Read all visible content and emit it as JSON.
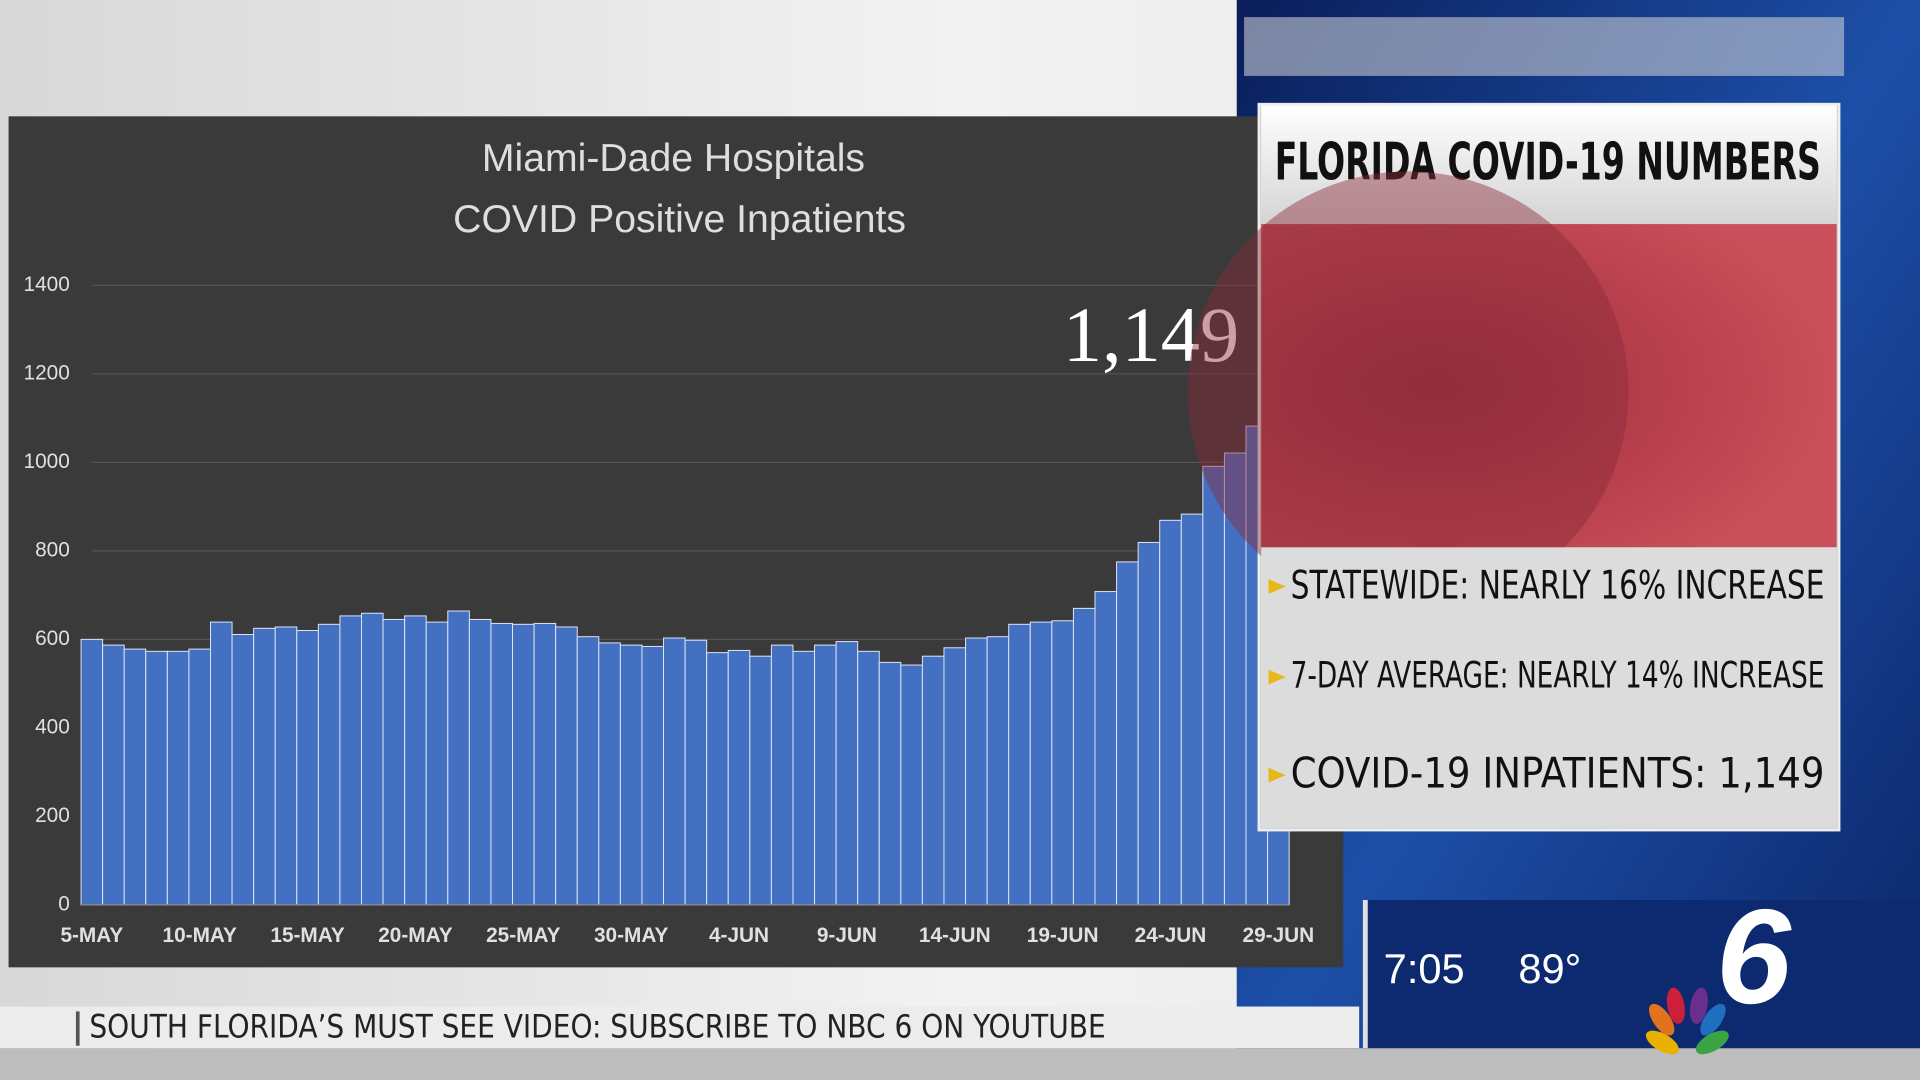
{
  "chart_data": {
    "type": "bar",
    "title": "Miami-Dade Hospitals",
    "subtitle": "COVID Positive Inpatients",
    "annotation": "1,149",
    "categories": [
      "5-MAY",
      null,
      null,
      null,
      null,
      "10-MAY",
      null,
      null,
      null,
      null,
      "15-MAY",
      null,
      null,
      null,
      null,
      "20-MAY",
      null,
      null,
      null,
      null,
      "25-MAY",
      null,
      null,
      null,
      null,
      "30-MAY",
      null,
      null,
      null,
      null,
      "4-JUN",
      null,
      null,
      null,
      null,
      "9-JUN",
      null,
      null,
      null,
      null,
      "14-JUN",
      null,
      null,
      null,
      null,
      "19-JUN",
      null,
      null,
      null,
      null,
      "24-JUN",
      null,
      null,
      null,
      null,
      "29-JUN"
    ],
    "values": [
      600,
      587,
      578,
      573,
      573,
      578,
      639,
      611,
      625,
      628,
      620,
      634,
      653,
      659,
      645,
      653,
      639,
      664,
      645,
      636,
      634,
      636,
      628,
      606,
      592,
      587,
      584,
      603,
      598,
      570,
      575,
      562,
      587,
      573,
      587,
      595,
      573,
      548,
      542,
      562,
      581,
      603,
      606,
      634,
      639,
      642,
      670,
      708,
      775,
      819,
      869,
      883,
      991,
      1021,
      1082,
      1149
    ],
    "color": "#4470c2",
    "ylim": [
      0,
      1400
    ],
    "yticks": [
      0,
      200,
      400,
      600,
      800,
      1000,
      1200,
      1400
    ],
    "grid": true
  },
  "panel": {
    "title": "FLORIDA COVID-19 NUMBERS",
    "items": [
      "STATEWIDE: NEARLY 16% INCREASE",
      "7-DAY AVERAGE: NEARLY 14% INCREASE",
      "COVID-19 INPATIENTS: 1,149"
    ]
  },
  "ticker": "SOUTH FLORIDA’S MUST SEE VIDEO: SUBSCRIBE TO NBC 6 ON YOUTUBE",
  "bug": {
    "time": "7:05",
    "temperature": "89°",
    "channel": "6"
  }
}
